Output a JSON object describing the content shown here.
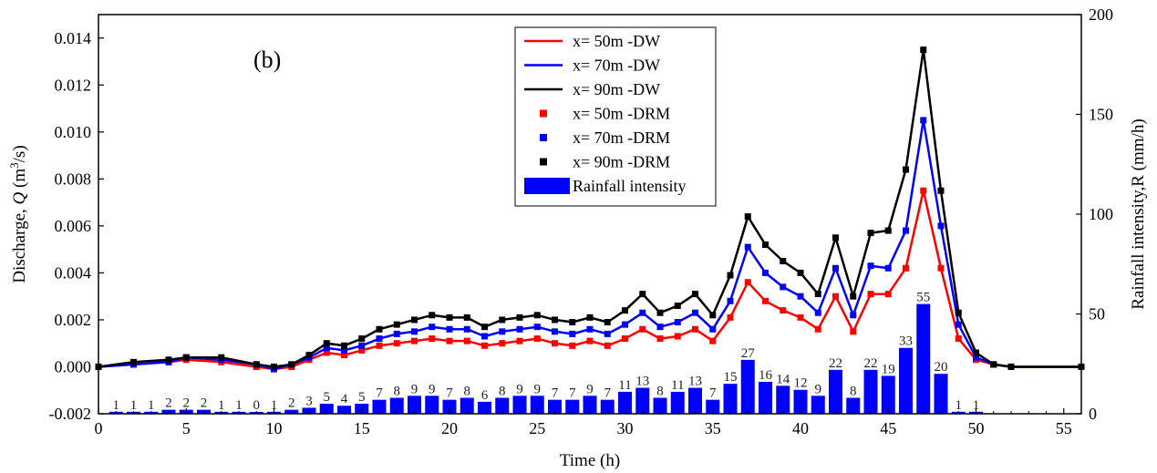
{
  "chart_data": {
    "type": "line",
    "panel_label": "(b)",
    "xlabel": "Time (h)",
    "ylabel_left": "Discharge, Q (m³/s)",
    "ylabel_right": "Rainfall intensity,R (mm/h)",
    "xlim": [
      0,
      56
    ],
    "ylim_left": [
      -0.002,
      0.015
    ],
    "ylim_right": [
      0,
      200
    ],
    "x_ticks": [
      "0",
      "5",
      "10",
      "15",
      "20",
      "25",
      "30",
      "35",
      "40",
      "45",
      "50",
      "55"
    ],
    "y_left_ticks": [
      "-0.002",
      "0.000",
      "0.002",
      "0.004",
      "0.006",
      "0.008",
      "0.010",
      "0.012",
      "0.014"
    ],
    "y_right_ticks": [
      "0",
      "50",
      "100",
      "150",
      "200"
    ],
    "grid": false,
    "legend_position": "top-center",
    "legend": [
      {
        "label": "x= 50m -DW",
        "kind": "line",
        "color": "#ff0000"
      },
      {
        "label": "x= 70m -DW",
        "kind": "line",
        "color": "#0000ff"
      },
      {
        "label": "x= 90m -DW",
        "kind": "line",
        "color": "#000000"
      },
      {
        "label": "x= 50m -DRM",
        "kind": "square",
        "color": "#ff0000"
      },
      {
        "label": "x= 70m -DRM",
        "kind": "square",
        "color": "#0000ff"
      },
      {
        "label": "x= 90m -DRM",
        "kind": "square",
        "color": "#000000"
      },
      {
        "label": "Rainfall intensity",
        "kind": "bar",
        "color": "#0000ff"
      }
    ],
    "rainfall": {
      "name": "Rainfall intensity",
      "axis": "right",
      "color": "#0000ff",
      "hours": [
        1,
        2,
        3,
        4,
        5,
        6,
        7,
        8,
        9,
        10,
        11,
        12,
        13,
        14,
        15,
        16,
        17,
        18,
        19,
        20,
        21,
        22,
        23,
        24,
        25,
        26,
        27,
        28,
        29,
        30,
        31,
        32,
        33,
        34,
        35,
        36,
        37,
        38,
        39,
        40,
        41,
        42,
        43,
        44,
        45,
        46,
        47,
        48,
        49,
        50
      ],
      "values": [
        1,
        1,
        1,
        2,
        2,
        2,
        1,
        1,
        0,
        1,
        2,
        3,
        5,
        4,
        5,
        7,
        8,
        9,
        9,
        7,
        8,
        6,
        8,
        9,
        9,
        7,
        7,
        9,
        7,
        11,
        13,
        8,
        11,
        13,
        7,
        15,
        27,
        16,
        14,
        12,
        9,
        22,
        8,
        22,
        19,
        33,
        55,
        20,
        1,
        1
      ],
      "labels": [
        "1",
        "1",
        "1",
        "2",
        "2",
        "2",
        "1",
        "1",
        "0",
        "1",
        "2",
        "3",
        "5",
        "4",
        "5",
        "7",
        "8",
        "9",
        "9",
        "7",
        "8",
        "6",
        "8",
        "9",
        "9",
        "7",
        "7",
        "9",
        "7",
        "11",
        "13",
        "8",
        "11",
        "13",
        "7",
        "15",
        "27",
        "16",
        "14",
        "12",
        "9",
        "22",
        "8",
        "22",
        "19",
        "33",
        "55",
        "20",
        "1",
        "1"
      ]
    },
    "series": [
      {
        "name": "x= 50m -DW",
        "color": "#ff0000",
        "style": "line",
        "x": [
          0,
          2,
          4,
          5,
          7,
          9,
          10,
          11,
          12,
          13,
          14,
          15,
          16,
          17,
          18,
          19,
          20,
          21,
          22,
          23,
          24,
          25,
          26,
          27,
          28,
          29,
          30,
          31,
          32,
          33,
          34,
          35,
          36,
          37,
          38,
          39,
          40,
          41,
          42,
          43,
          44,
          45,
          46,
          47,
          48,
          49,
          50,
          51,
          52,
          56
        ],
        "y": [
          0.0,
          0.0001,
          0.0002,
          0.0003,
          0.0002,
          0.0,
          -0.0001,
          0.0,
          0.0003,
          0.0006,
          0.0005,
          0.0007,
          0.0009,
          0.001,
          0.0011,
          0.0012,
          0.0011,
          0.0011,
          0.0009,
          0.001,
          0.0011,
          0.0012,
          0.001,
          0.0009,
          0.0011,
          0.0009,
          0.0012,
          0.0016,
          0.0012,
          0.0013,
          0.0016,
          0.0011,
          0.0021,
          0.0036,
          0.0028,
          0.0024,
          0.0021,
          0.0016,
          0.003,
          0.0015,
          0.0031,
          0.0031,
          0.0042,
          0.0075,
          0.0042,
          0.0012,
          0.0003,
          0.0001,
          0.0,
          0.0
        ]
      },
      {
        "name": "x= 70m -DW",
        "color": "#0000ff",
        "style": "line",
        "x": [
          0,
          2,
          4,
          5,
          7,
          9,
          10,
          11,
          12,
          13,
          14,
          15,
          16,
          17,
          18,
          19,
          20,
          21,
          22,
          23,
          24,
          25,
          26,
          27,
          28,
          29,
          30,
          31,
          32,
          33,
          34,
          35,
          36,
          37,
          38,
          39,
          40,
          41,
          42,
          43,
          44,
          45,
          46,
          47,
          48,
          49,
          50,
          51,
          52,
          56
        ],
        "y": [
          0.0,
          0.0001,
          0.0002,
          0.0004,
          0.0003,
          0.0001,
          -0.0001,
          0.0001,
          0.0004,
          0.0008,
          0.0007,
          0.0009,
          0.0012,
          0.0014,
          0.0015,
          0.0017,
          0.0016,
          0.0016,
          0.0013,
          0.0015,
          0.0016,
          0.0017,
          0.0015,
          0.0014,
          0.0016,
          0.0014,
          0.0018,
          0.0023,
          0.0017,
          0.0019,
          0.0023,
          0.0016,
          0.0028,
          0.0051,
          0.004,
          0.0034,
          0.003,
          0.0023,
          0.0042,
          0.0022,
          0.0043,
          0.0042,
          0.0058,
          0.0105,
          0.006,
          0.0018,
          0.0004,
          0.0001,
          0.0,
          0.0
        ]
      },
      {
        "name": "x= 90m -DW",
        "color": "#000000",
        "style": "line",
        "x": [
          0,
          2,
          4,
          5,
          7,
          9,
          10,
          11,
          12,
          13,
          14,
          15,
          16,
          17,
          18,
          19,
          20,
          21,
          22,
          23,
          24,
          25,
          26,
          27,
          28,
          29,
          30,
          31,
          32,
          33,
          34,
          35,
          36,
          37,
          38,
          39,
          40,
          41,
          42,
          43,
          44,
          45,
          46,
          47,
          48,
          49,
          50,
          51,
          52,
          56
        ],
        "y": [
          0.0,
          0.0002,
          0.0003,
          0.0004,
          0.0004,
          0.0001,
          0.0,
          0.0001,
          0.0005,
          0.001,
          0.0009,
          0.0012,
          0.0016,
          0.0018,
          0.002,
          0.0022,
          0.0021,
          0.0021,
          0.0017,
          0.002,
          0.0021,
          0.0022,
          0.002,
          0.0019,
          0.0021,
          0.0019,
          0.0024,
          0.0031,
          0.0023,
          0.0026,
          0.0031,
          0.0022,
          0.0039,
          0.0064,
          0.0052,
          0.0045,
          0.004,
          0.0031,
          0.0055,
          0.003,
          0.0057,
          0.0058,
          0.0084,
          0.0135,
          0.0075,
          0.0023,
          0.0006,
          0.0001,
          0.0,
          0.0
        ]
      },
      {
        "name": "x= 50m -DRM",
        "color": "#ff0000",
        "style": "square",
        "x": [
          0,
          2,
          4,
          5,
          7,
          9,
          10,
          11,
          12,
          13,
          14,
          15,
          16,
          17,
          18,
          19,
          20,
          21,
          22,
          23,
          24,
          25,
          26,
          27,
          28,
          29,
          30,
          31,
          32,
          33,
          34,
          35,
          36,
          37,
          38,
          39,
          40,
          41,
          42,
          43,
          44,
          45,
          46,
          47,
          48,
          49,
          50,
          51,
          52,
          56
        ],
        "y": [
          0.0,
          0.0001,
          0.0002,
          0.0003,
          0.0002,
          0.0,
          -0.0001,
          0.0,
          0.0003,
          0.0006,
          0.0005,
          0.0007,
          0.0009,
          0.001,
          0.0011,
          0.0012,
          0.0011,
          0.0011,
          0.0009,
          0.001,
          0.0011,
          0.0012,
          0.001,
          0.0009,
          0.0011,
          0.0009,
          0.0012,
          0.0016,
          0.0012,
          0.0013,
          0.0016,
          0.0011,
          0.0021,
          0.0036,
          0.0028,
          0.0024,
          0.0021,
          0.0016,
          0.003,
          0.0015,
          0.0031,
          0.0031,
          0.0042,
          0.0075,
          0.0042,
          0.0012,
          0.0003,
          0.0001,
          0.0,
          0.0
        ]
      },
      {
        "name": "x= 70m -DRM",
        "color": "#0000ff",
        "style": "square",
        "x": [
          0,
          2,
          4,
          5,
          7,
          9,
          10,
          11,
          12,
          13,
          14,
          15,
          16,
          17,
          18,
          19,
          20,
          21,
          22,
          23,
          24,
          25,
          26,
          27,
          28,
          29,
          30,
          31,
          32,
          33,
          34,
          35,
          36,
          37,
          38,
          39,
          40,
          41,
          42,
          43,
          44,
          45,
          46,
          47,
          48,
          49,
          50,
          51,
          52,
          56
        ],
        "y": [
          0.0,
          0.0001,
          0.0002,
          0.0004,
          0.0003,
          0.0001,
          -0.0001,
          0.0001,
          0.0004,
          0.0008,
          0.0007,
          0.0009,
          0.0012,
          0.0014,
          0.0015,
          0.0017,
          0.0016,
          0.0016,
          0.0013,
          0.0015,
          0.0016,
          0.0017,
          0.0015,
          0.0014,
          0.0016,
          0.0014,
          0.0018,
          0.0023,
          0.0017,
          0.0019,
          0.0023,
          0.0016,
          0.0028,
          0.0051,
          0.004,
          0.0034,
          0.003,
          0.0023,
          0.0042,
          0.0022,
          0.0043,
          0.0042,
          0.0058,
          0.0105,
          0.006,
          0.0018,
          0.0004,
          0.0001,
          0.0,
          0.0
        ]
      },
      {
        "name": "x= 90m -DRM",
        "color": "#000000",
        "style": "square",
        "x": [
          0,
          2,
          4,
          5,
          7,
          9,
          10,
          11,
          12,
          13,
          14,
          15,
          16,
          17,
          18,
          19,
          20,
          21,
          22,
          23,
          24,
          25,
          26,
          27,
          28,
          29,
          30,
          31,
          32,
          33,
          34,
          35,
          36,
          37,
          38,
          39,
          40,
          41,
          42,
          43,
          44,
          45,
          46,
          47,
          48,
          49,
          50,
          51,
          52,
          56
        ],
        "y": [
          0.0,
          0.0002,
          0.0003,
          0.0004,
          0.0004,
          0.0001,
          0.0,
          0.0001,
          0.0005,
          0.001,
          0.0009,
          0.0012,
          0.0016,
          0.0018,
          0.002,
          0.0022,
          0.0021,
          0.0021,
          0.0017,
          0.002,
          0.0021,
          0.0022,
          0.002,
          0.0019,
          0.0021,
          0.0019,
          0.0024,
          0.0031,
          0.0023,
          0.0026,
          0.0031,
          0.0022,
          0.0039,
          0.0064,
          0.0052,
          0.0045,
          0.004,
          0.0031,
          0.0055,
          0.003,
          0.0057,
          0.0058,
          0.0084,
          0.0135,
          0.0075,
          0.0023,
          0.0006,
          0.0001,
          0.0,
          0.0
        ]
      }
    ]
  }
}
